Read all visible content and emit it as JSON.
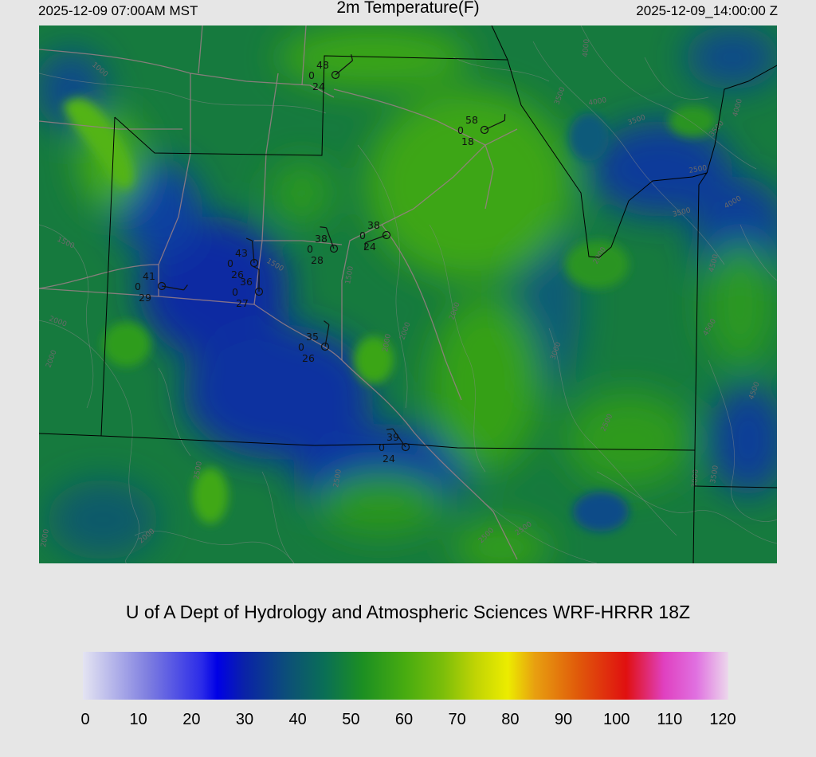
{
  "header": {
    "valid_time_local": "2025-12-09 07:00AM MST",
    "field_title": "2m Temperature(F)",
    "valid_time_utc": "2025-12-09_14:00:00 Z"
  },
  "credit": "U of A Dept of Hydrology and Atmospheric Sciences WRF-HRRR 18Z",
  "colorbar": {
    "min": 0,
    "max": 120,
    "tick_labels": [
      "0",
      "10",
      "20",
      "30",
      "40",
      "50",
      "60",
      "70",
      "80",
      "90",
      "100",
      "110",
      "120"
    ],
    "stops": [
      {
        "v": 0,
        "c": "#e4e4f2"
      },
      {
        "v": 12,
        "c": "#7f7fe0"
      },
      {
        "v": 22,
        "c": "#2c2ce8"
      },
      {
        "v": 25,
        "c": "#0000e6"
      },
      {
        "v": 30,
        "c": "#0a22a8"
      },
      {
        "v": 38,
        "c": "#0c4f78"
      },
      {
        "v": 45,
        "c": "#0a6f55"
      },
      {
        "v": 52,
        "c": "#1c8f22"
      },
      {
        "v": 60,
        "c": "#48ac10"
      },
      {
        "v": 67,
        "c": "#7cbe0a"
      },
      {
        "v": 73,
        "c": "#c0d404"
      },
      {
        "v": 79,
        "c": "#ecec00"
      },
      {
        "v": 84,
        "c": "#e8a010"
      },
      {
        "v": 92,
        "c": "#e05a0a"
      },
      {
        "v": 101,
        "c": "#e01010"
      },
      {
        "v": 108,
        "c": "#e040c0"
      },
      {
        "v": 114,
        "c": "#e070e0"
      },
      {
        "v": 120,
        "c": "#ecd8ec"
      }
    ]
  },
  "stations": [
    {
      "temp": "48",
      "dew": "24",
      "cloud": "0"
    },
    {
      "temp": "58",
      "dew": "18",
      "cloud": "0"
    },
    {
      "temp": "38",
      "dew": "24",
      "cloud": "0"
    },
    {
      "temp": "38",
      "dew": "28",
      "cloud": "0"
    },
    {
      "temp": "43",
      "dew": "26",
      "cloud": "0"
    },
    {
      "temp": "36",
      "dew": "27",
      "cloud": "0"
    },
    {
      "temp": "41",
      "dew": "29",
      "cloud": "0"
    },
    {
      "temp": "35",
      "dew": "26",
      "cloud": "0"
    },
    {
      "temp": "39",
      "dew": "24",
      "cloud": "0"
    }
  ],
  "contour_labels": [
    "1000",
    "1500",
    "1500",
    "1500",
    "2000",
    "2000",
    "2000",
    "2000",
    "2000",
    "2000",
    "2000",
    "2000",
    "2500",
    "2500",
    "2500",
    "2500",
    "2500",
    "2500",
    "3000",
    "3000",
    "3500",
    "3500",
    "3500",
    "3500",
    "3500",
    "4000",
    "4000",
    "4000",
    "4000",
    "4500",
    "4500",
    "4500"
  ]
}
